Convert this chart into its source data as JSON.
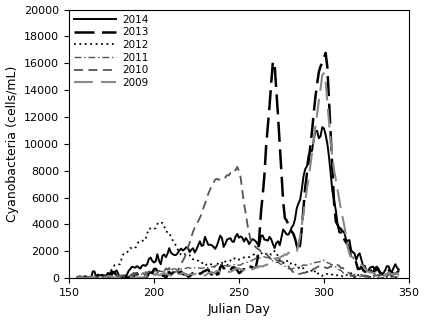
{
  "title": "",
  "xlabel": "Julian Day",
  "ylabel": "Cyanobacteria (cells/mL)",
  "xlim": [
    150,
    350
  ],
  "ylim": [
    0,
    20000
  ],
  "yticks": [
    0,
    2000,
    4000,
    6000,
    8000,
    10000,
    12000,
    14000,
    16000,
    18000,
    20000
  ],
  "xticks": [
    150,
    200,
    250,
    300,
    350
  ],
  "legend_labels": [
    "2014",
    "2013",
    "2012",
    "2011",
    "2010",
    "2009"
  ],
  "line_colors": [
    "#000000",
    "#000000",
    "#000000",
    "#555555",
    "#555555",
    "#888888"
  ],
  "line_widths": [
    1.4,
    1.8,
    1.3,
    1.0,
    1.3,
    1.5
  ],
  "legend_loc": "upper left",
  "dpi": 100,
  "figsize": [
    4.25,
    3.22
  ]
}
